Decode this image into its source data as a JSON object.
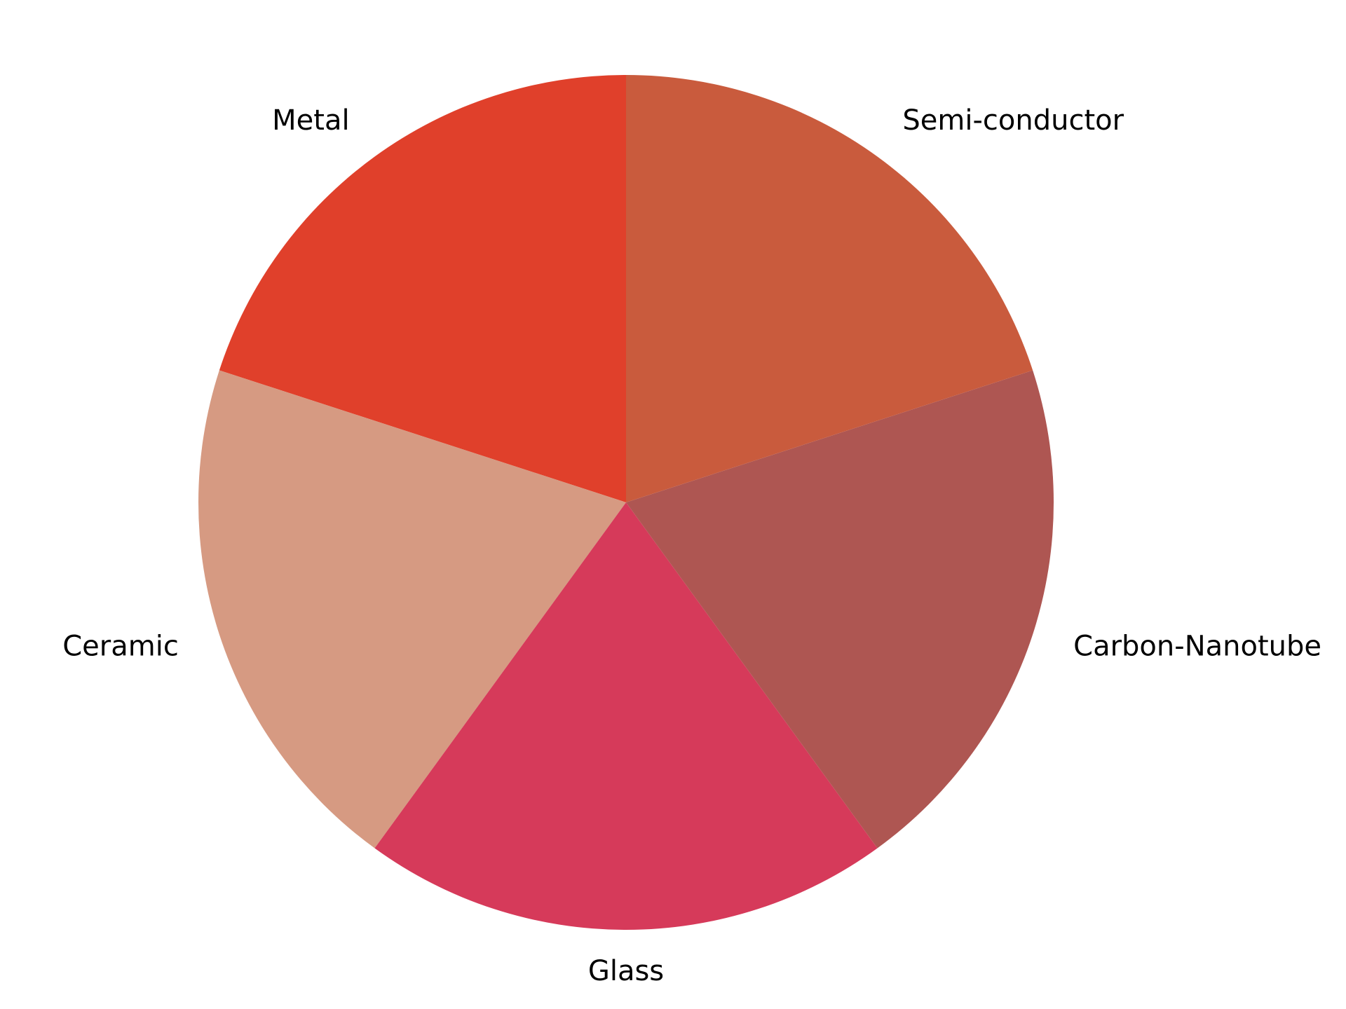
{
  "chart_data": {
    "type": "pie",
    "title": "",
    "start_angle_deg": 90,
    "direction": "counterclockwise",
    "legend": "none",
    "slices": [
      {
        "label": "Metal",
        "value": 20,
        "color": "#e0402b"
      },
      {
        "label": "Ceramic",
        "value": 20,
        "color": "#d69a82"
      },
      {
        "label": "Glass",
        "value": 20,
        "color": "#d63a5a"
      },
      {
        "label": "Carbon-Nanotube",
        "value": 20,
        "color": "#ae5652"
      },
      {
        "label": "Semi-conductor",
        "value": 20,
        "color": "#c95b3d"
      }
    ]
  }
}
